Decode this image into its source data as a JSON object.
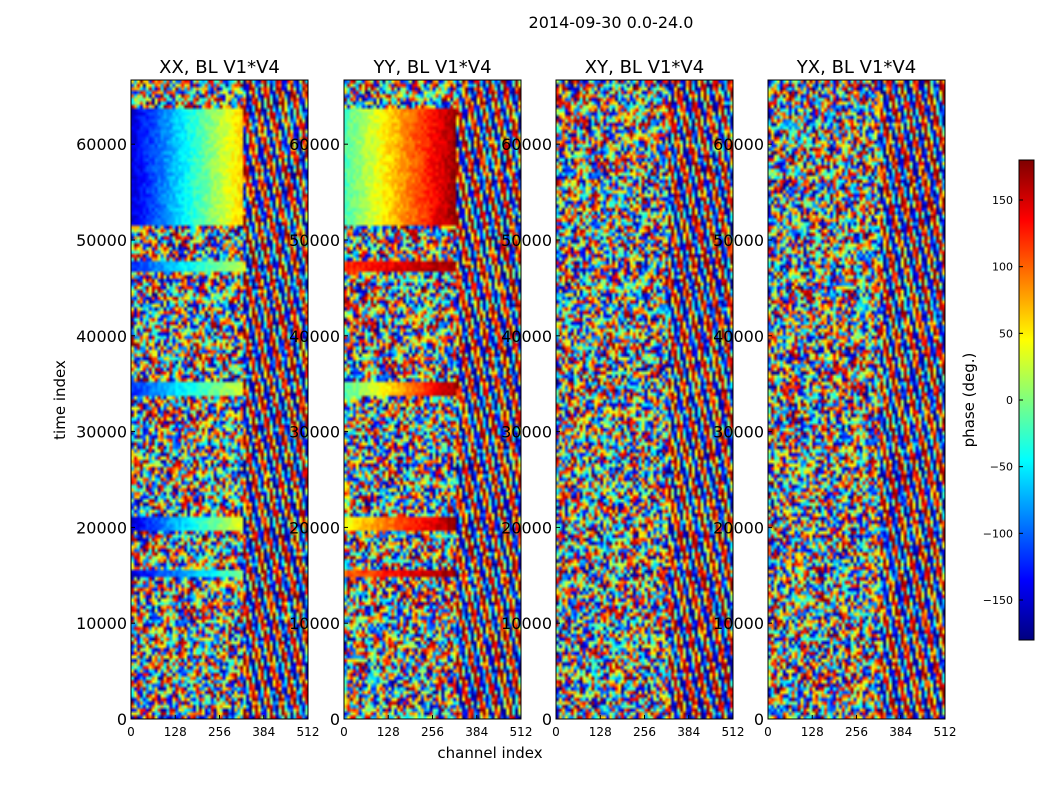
{
  "chart_data": {
    "type": "heatmap",
    "title": "2014-09-30 0.0-24.0",
    "xlabel": "channel index",
    "ylabel": "time index",
    "xlim": [
      0,
      512
    ],
    "ylim": [
      0,
      66700
    ],
    "x_ticks": [
      0,
      128,
      256,
      384,
      512
    ],
    "y_ticks": [
      0,
      10000,
      20000,
      30000,
      40000,
      50000,
      60000
    ],
    "colorbar": {
      "label": "phase (deg.)",
      "range": [
        -180,
        180
      ],
      "ticks": [
        -150,
        -100,
        -50,
        0,
        50,
        100,
        150
      ],
      "tick_labels": [
        "−150",
        "−100",
        "−50",
        "0",
        "50",
        "100",
        "150"
      ],
      "colormap": "jet",
      "colors": [
        "#00007f",
        "#0000ff",
        "#007fff",
        "#00ffff",
        "#7fff7f",
        "#ffff00",
        "#ff7f00",
        "#ff0000",
        "#7f0000"
      ]
    },
    "panels": [
      {
        "title": "XX, BL V1*V4",
        "coherent_bands": [
          {
            "t0": 51500,
            "t1": 63600,
            "c0": 0,
            "c1": 320,
            "phase0": -150,
            "phase1": 60
          },
          {
            "t0": 46800,
            "t1": 47800,
            "c0": 0,
            "c1": 320,
            "phase0": -120,
            "phase1": 20
          },
          {
            "t0": 33700,
            "t1": 35200,
            "c0": 0,
            "c1": 320,
            "phase0": -120,
            "phase1": 30
          },
          {
            "t0": 19800,
            "t1": 21000,
            "c0": 0,
            "c1": 320,
            "phase0": -150,
            "phase1": 40
          },
          {
            "t0": 14800,
            "t1": 15500,
            "c0": 0,
            "c1": 320,
            "phase0": -150,
            "phase1": 0
          }
        ]
      },
      {
        "title": "YY, BL V1*V4",
        "coherent_bands": [
          {
            "t0": 51500,
            "t1": 63600,
            "c0": 0,
            "c1": 320,
            "phase0": -20,
            "phase1": 170
          },
          {
            "t0": 46800,
            "t1": 47800,
            "c0": 0,
            "c1": 320,
            "phase0": 120,
            "phase1": 170
          },
          {
            "t0": 33700,
            "t1": 35200,
            "c0": 0,
            "c1": 320,
            "phase0": -20,
            "phase1": 170
          },
          {
            "t0": 19800,
            "t1": 21000,
            "c0": 0,
            "c1": 320,
            "phase0": 40,
            "phase1": 170
          },
          {
            "t0": 14800,
            "t1": 15500,
            "c0": 0,
            "c1": 320,
            "phase0": 100,
            "phase1": 170
          }
        ]
      },
      {
        "title": "XY, BL V1*V4",
        "coherent_bands": []
      },
      {
        "title": "YX, BL V1*V4",
        "coherent_bands": []
      }
    ]
  }
}
